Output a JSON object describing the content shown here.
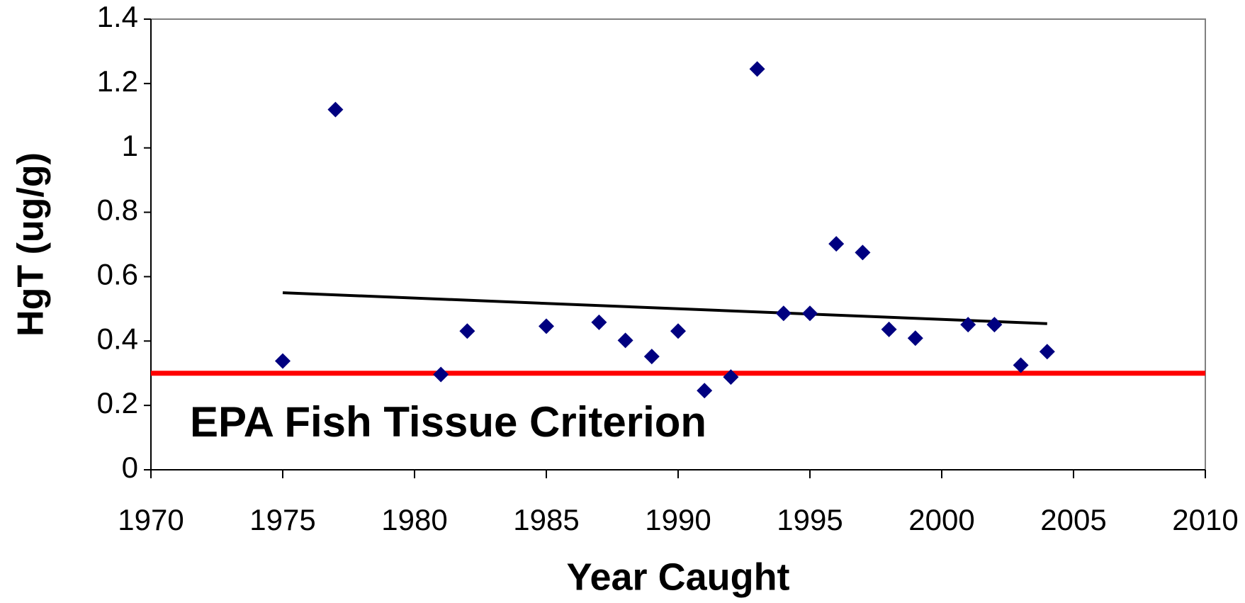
{
  "chart_data": {
    "type": "scatter",
    "x_label": "Year Caught",
    "y_label": "HgT (ug/g)",
    "x": [
      1975,
      1977,
      1981,
      1982,
      1985,
      1987,
      1988,
      1989,
      1990,
      1991,
      1992,
      1993,
      1994,
      1995,
      1996,
      1997,
      1998,
      1999,
      2001,
      2002,
      2003,
      2004
    ],
    "values": [
      0.338,
      1.119,
      0.296,
      0.431,
      0.446,
      0.458,
      0.402,
      0.352,
      0.431,
      0.246,
      0.288,
      1.245,
      0.486,
      0.486,
      0.702,
      0.675,
      0.436,
      0.409,
      0.451,
      0.451,
      0.325,
      0.367
    ],
    "color": "#000080",
    "trendline": {
      "x": [
        1975,
        2004
      ],
      "values": [
        0.55,
        0.454
      ],
      "color": "#000000"
    },
    "reference_line": {
      "value": 0.3,
      "color": "#ff0000",
      "label": "EPA Fish Tissue Criterion"
    },
    "xlim": [
      1970,
      2010
    ],
    "xticks": [
      1970,
      1975,
      1980,
      1985,
      1990,
      1995,
      2000,
      2005,
      2010
    ],
    "ylim": [
      0,
      1.4
    ],
    "yticks": [
      0,
      0.2,
      0.4,
      0.6,
      0.8,
      1,
      1.2,
      1.4
    ],
    "grid": false
  }
}
